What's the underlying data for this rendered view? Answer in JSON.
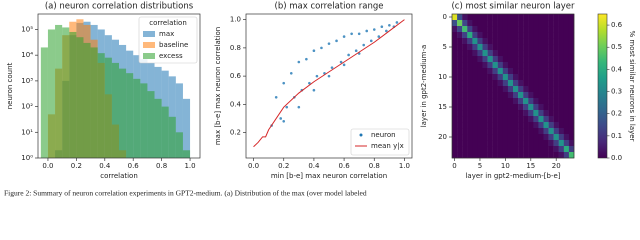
{
  "caption": "Figure 2: Summary of neuron correlation experiments in GPT2-medium. (a) Distribution of the max (over model labeled",
  "chart_data": [
    {
      "type": "histogram",
      "title": "(a) neuron correlation distributions",
      "x_label": "correlation",
      "y_label": "neuron count",
      "log_y": true,
      "xlim": [
        -0.07,
        1.07
      ],
      "ylim": [
        1,
        400000
      ],
      "xticks": [
        {
          "value": 0,
          "label": "0.0"
        },
        0.2,
        0.4,
        0.6,
        0.8,
        {
          "value": 1,
          "label": "1.0"
        }
      ],
      "yticks": [
        {
          "value": 1,
          "label": "10⁰"
        },
        {
          "value": 10,
          "label": "10¹"
        },
        {
          "value": 100,
          "label": "10²"
        },
        {
          "value": 1000,
          "label": "10³"
        },
        {
          "value": 10000,
          "label": "10⁴"
        },
        {
          "value": 100000,
          "label": "10⁵"
        }
      ],
      "legend_title": "correlation",
      "legend_position": "upper right",
      "bins": [
        -0.05,
        0,
        0.05,
        0.1,
        0.15,
        0.2,
        0.25,
        0.3,
        0.35,
        0.4,
        0.45,
        0.5,
        0.55,
        0.6,
        0.65,
        0.7,
        0.75,
        0.8,
        0.85,
        0.9,
        0.95,
        1.0
      ],
      "series": [
        {
          "name": "max",
          "color": "#1f77b4",
          "values": [
            1,
            1,
            2,
            1000,
            60000,
            180000,
            200000,
            150000,
            100000,
            60000,
            40000,
            25000,
            15000,
            10000,
            7000,
            5000,
            3500,
            2500,
            1500,
            800,
            200
          ]
        },
        {
          "name": "baseline",
          "color": "#ff7f0e",
          "values": [
            1,
            50,
            3000,
            60000,
            200000,
            250000,
            150000,
            40000,
            5000,
            300,
            20,
            2,
            1,
            1,
            1,
            1,
            1,
            1,
            1,
            1,
            1
          ]
        },
        {
          "name": "excess",
          "color": "#2ca02c",
          "values": [
            20000,
            100000,
            150000,
            120000,
            80000,
            50000,
            30000,
            20000,
            12000,
            8000,
            5000,
            3000,
            2000,
            1200,
            800,
            400,
            200,
            100,
            40,
            10,
            2
          ]
        }
      ]
    },
    {
      "type": "scatter",
      "title": "(b) max correlation range",
      "x_label": "min [b-e] max neuron correlation",
      "y_label": "max [b-e] max neuron correlation",
      "xlim": [
        -0.05,
        1.05
      ],
      "ylim": [
        0.02,
        1.04
      ],
      "xticks": [
        {
          "value": 0,
          "label": "0.0"
        },
        0.2,
        0.4,
        0.6,
        0.8,
        {
          "value": 1,
          "label": "1.0"
        }
      ],
      "yticks": [
        0.2,
        0.4,
        0.6,
        0.8,
        {
          "value": 1,
          "label": "1.0"
        }
      ],
      "legend_position": "lower right",
      "series": [
        {
          "name": "neuron",
          "type": "scatter",
          "color": "#1f77b4",
          "x": [
            0.12,
            0.15,
            0.18,
            0.2,
            0.22,
            0.25,
            0.27,
            0.3,
            0.32,
            0.35,
            0.37,
            0.4,
            0.42,
            0.45,
            0.47,
            0.5,
            0.52,
            0.55,
            0.58,
            0.6,
            0.63,
            0.65,
            0.68,
            0.7,
            0.73,
            0.75,
            0.78,
            0.8,
            0.83,
            0.85,
            0.88,
            0.9,
            0.93,
            0.95,
            0.2,
            0.3,
            0.4,
            0.5,
            0.6,
            0.7
          ],
          "values": [
            0.25,
            0.45,
            0.3,
            0.55,
            0.38,
            0.62,
            0.45,
            0.7,
            0.5,
            0.72,
            0.55,
            0.78,
            0.6,
            0.8,
            0.62,
            0.83,
            0.66,
            0.85,
            0.7,
            0.88,
            0.75,
            0.9,
            0.78,
            0.9,
            0.82,
            0.92,
            0.85,
            0.93,
            0.88,
            0.95,
            0.92,
            0.96,
            0.95,
            0.98,
            0.28,
            0.38,
            0.5,
            0.6,
            0.68,
            0.76
          ]
        },
        {
          "name": "mean y|x",
          "type": "line",
          "color": "#d62728",
          "x": [
            0,
            0.03,
            0.06,
            0.08,
            0.1,
            0.2,
            0.3,
            0.4,
            0.5,
            0.6,
            0.7,
            0.8,
            0.9,
            1.0
          ],
          "values": [
            0.1,
            0.13,
            0.17,
            0.17,
            0.22,
            0.38,
            0.48,
            0.56,
            0.63,
            0.7,
            0.77,
            0.84,
            0.92,
            1.0
          ]
        }
      ]
    },
    {
      "type": "heatmap",
      "title": "(c) most similar neuron layer",
      "x_label": "layer in gpt2-medium-[b-e]",
      "y_label": "layer in gpt2-medium-a",
      "xlim": [
        -0.5,
        23.5
      ],
      "ylim": [
        23.5,
        -0.5
      ],
      "xticks": [
        0,
        5,
        10,
        15,
        20
      ],
      "yticks": [
        0,
        5,
        10,
        15,
        20
      ],
      "colorbar": {
        "label": "% most similar neurons in layer",
        "lim": [
          0,
          0.65
        ],
        "ticks": [
          {
            "value": 0,
            "label": "0.0"
          },
          0.1,
          0.2,
          0.3,
          0.4,
          0.5,
          0.6
        ]
      },
      "values": [
        [
          0.62,
          0.16,
          0.03,
          0,
          0,
          0,
          0,
          0,
          0,
          0,
          0,
          0,
          0,
          0,
          0,
          0,
          0,
          0,
          0,
          0,
          0,
          0,
          0,
          0
        ],
        [
          0.16,
          0.5,
          0.14,
          0.03,
          0,
          0,
          0,
          0,
          0,
          0,
          0,
          0,
          0,
          0,
          0,
          0,
          0,
          0,
          0,
          0,
          0,
          0,
          0,
          0
        ],
        [
          0.03,
          0.14,
          0.45,
          0.13,
          0.03,
          0,
          0,
          0,
          0,
          0,
          0,
          0,
          0,
          0,
          0,
          0,
          0,
          0,
          0,
          0,
          0,
          0,
          0,
          0
        ],
        [
          0,
          0.03,
          0.13,
          0.4,
          0.12,
          0.03,
          0,
          0,
          0,
          0,
          0,
          0,
          0,
          0,
          0,
          0,
          0,
          0,
          0,
          0,
          0,
          0,
          0,
          0
        ],
        [
          0,
          0,
          0.03,
          0.12,
          0.33,
          0.12,
          0.03,
          0,
          0,
          0,
          0,
          0,
          0,
          0,
          0,
          0,
          0,
          0,
          0,
          0,
          0,
          0,
          0,
          0
        ],
        [
          0,
          0,
          0,
          0.03,
          0.12,
          0.33,
          0.12,
          0.03,
          0,
          0,
          0,
          0,
          0,
          0,
          0,
          0,
          0,
          0,
          0,
          0,
          0,
          0,
          0,
          0
        ],
        [
          0,
          0,
          0,
          0,
          0.03,
          0.12,
          0.33,
          0.12,
          0.03,
          0,
          0,
          0,
          0,
          0,
          0,
          0,
          0,
          0,
          0,
          0,
          0,
          0,
          0,
          0
        ],
        [
          0,
          0,
          0,
          0,
          0,
          0.03,
          0.12,
          0.33,
          0.12,
          0.03,
          0,
          0,
          0,
          0,
          0,
          0,
          0,
          0,
          0,
          0,
          0,
          0,
          0,
          0
        ],
        [
          0,
          0,
          0,
          0,
          0,
          0,
          0.03,
          0.12,
          0.33,
          0.12,
          0.03,
          0,
          0,
          0,
          0,
          0,
          0,
          0,
          0,
          0,
          0,
          0,
          0,
          0
        ],
        [
          0,
          0,
          0,
          0,
          0,
          0,
          0,
          0.03,
          0.12,
          0.33,
          0.12,
          0.03,
          0,
          0,
          0,
          0,
          0,
          0,
          0,
          0,
          0,
          0,
          0,
          0
        ],
        [
          0,
          0,
          0,
          0,
          0,
          0,
          0,
          0,
          0.03,
          0.12,
          0.33,
          0.12,
          0.03,
          0,
          0,
          0,
          0,
          0,
          0,
          0,
          0,
          0,
          0,
          0
        ],
        [
          0,
          0,
          0,
          0,
          0,
          0,
          0,
          0,
          0,
          0.03,
          0.12,
          0.33,
          0.12,
          0.03,
          0,
          0,
          0,
          0,
          0,
          0,
          0,
          0,
          0,
          0
        ],
        [
          0,
          0,
          0,
          0,
          0,
          0,
          0,
          0,
          0,
          0,
          0.03,
          0.12,
          0.33,
          0.12,
          0.03,
          0,
          0,
          0,
          0,
          0,
          0,
          0,
          0,
          0
        ],
        [
          0,
          0,
          0,
          0,
          0,
          0,
          0,
          0,
          0,
          0,
          0,
          0.03,
          0.12,
          0.33,
          0.12,
          0.03,
          0,
          0,
          0,
          0,
          0,
          0,
          0,
          0
        ],
        [
          0,
          0,
          0,
          0,
          0,
          0,
          0,
          0,
          0,
          0,
          0,
          0,
          0.03,
          0.12,
          0.33,
          0.12,
          0.03,
          0,
          0,
          0,
          0,
          0,
          0,
          0
        ],
        [
          0,
          0,
          0,
          0,
          0,
          0,
          0,
          0,
          0,
          0,
          0,
          0,
          0,
          0.03,
          0.12,
          0.33,
          0.12,
          0.03,
          0,
          0,
          0,
          0,
          0,
          0
        ],
        [
          0,
          0,
          0,
          0,
          0,
          0,
          0,
          0,
          0,
          0,
          0,
          0,
          0,
          0,
          0.03,
          0.12,
          0.33,
          0.12,
          0.03,
          0,
          0,
          0,
          0,
          0
        ],
        [
          0,
          0,
          0,
          0,
          0,
          0,
          0,
          0,
          0,
          0,
          0,
          0,
          0,
          0,
          0,
          0.03,
          0.12,
          0.33,
          0.12,
          0.03,
          0,
          0,
          0,
          0
        ],
        [
          0,
          0,
          0,
          0,
          0,
          0,
          0,
          0,
          0,
          0,
          0,
          0,
          0,
          0,
          0,
          0,
          0.03,
          0.12,
          0.33,
          0.12,
          0.03,
          0,
          0,
          0
        ],
        [
          0,
          0,
          0,
          0,
          0,
          0,
          0,
          0,
          0,
          0,
          0,
          0,
          0,
          0,
          0,
          0,
          0,
          0.03,
          0.12,
          0.33,
          0.12,
          0.03,
          0,
          0
        ],
        [
          0,
          0,
          0,
          0,
          0,
          0,
          0,
          0,
          0,
          0,
          0,
          0,
          0,
          0,
          0,
          0,
          0,
          0,
          0.03,
          0.12,
          0.33,
          0.12,
          0.03,
          0
        ],
        [
          0,
          0,
          0,
          0,
          0,
          0,
          0,
          0,
          0,
          0,
          0,
          0,
          0,
          0,
          0,
          0,
          0,
          0,
          0,
          0.03,
          0.12,
          0.33,
          0.12,
          0.03
        ],
        [
          0,
          0,
          0,
          0,
          0,
          0,
          0,
          0,
          0,
          0,
          0,
          0,
          0,
          0,
          0,
          0,
          0,
          0,
          0,
          0,
          0.03,
          0.12,
          0.4,
          0.12
        ],
        [
          0,
          0,
          0,
          0,
          0,
          0,
          0,
          0,
          0,
          0,
          0,
          0,
          0,
          0,
          0,
          0,
          0,
          0,
          0,
          0,
          0,
          0.03,
          0.12,
          0.45
        ]
      ]
    }
  ]
}
